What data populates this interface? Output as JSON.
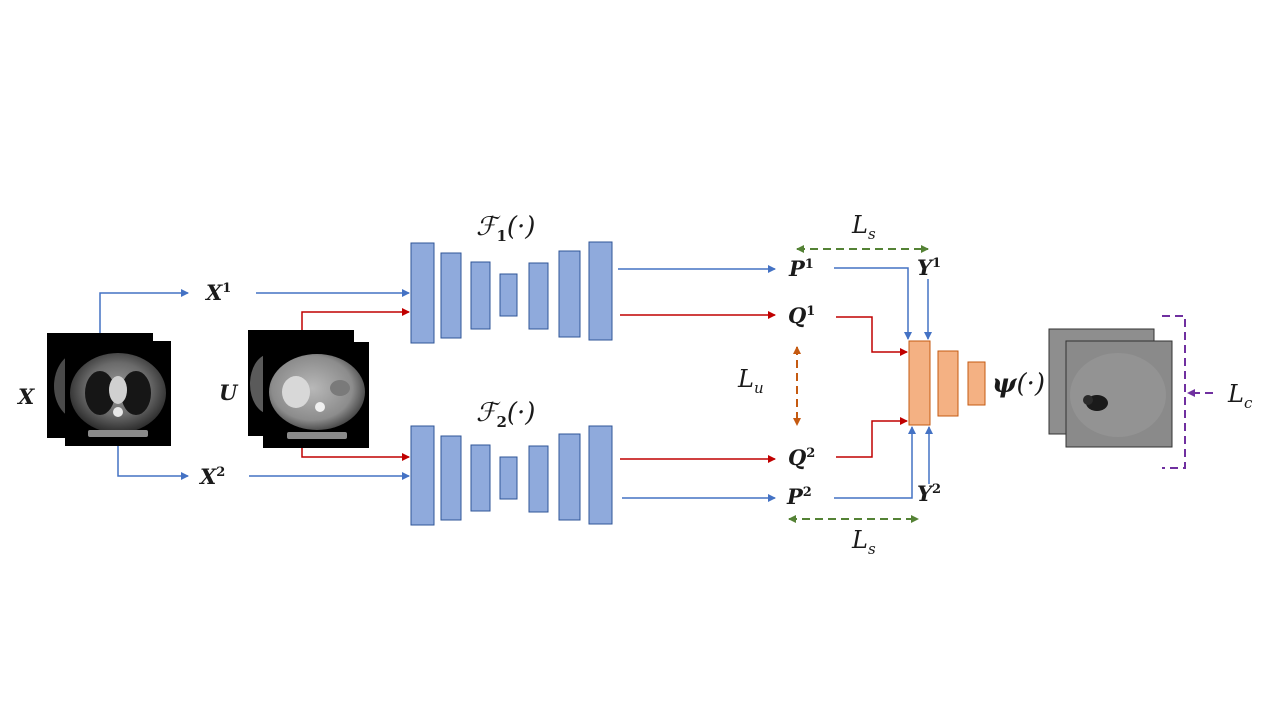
{
  "labels": {
    "x": "X",
    "x1": "X",
    "x1_sup": "1",
    "x2": "X",
    "x2_sup": "2",
    "u": "U",
    "f1": "ℱ",
    "f1_sub": "1",
    "f1_arg": "(·)",
    "f2": "ℱ",
    "f2_sub": "2",
    "f2_arg": "(·)",
    "p1": "P",
    "p1_sup": "1",
    "q1": "Q",
    "q1_sup": "1",
    "q2": "Q",
    "q2_sup": "2",
    "p2": "P",
    "p2_sup": "2",
    "y1": "Y",
    "y1_sup": "1",
    "y2": "Y",
    "y2_sup": "2",
    "ls_top": "L",
    "ls_top_sub": "s",
    "ls_bottom": "L",
    "ls_bottom_sub": "s",
    "lu": "L",
    "lu_sub": "u",
    "lc": "L",
    "lc_sub": "c",
    "psi": "ψ",
    "psi_arg": "(·)"
  },
  "colors": {
    "encoder_fill": "#8faadc",
    "encoder_stroke": "#2f5597",
    "head_fill": "#f4b183",
    "head_stroke": "#c55a11",
    "labeled_arrow": "#4472c4",
    "unlabeled_arrow": "#c00000",
    "loss_s": "#548235",
    "loss_u": "#c55a11",
    "loss_c": "#7030a0"
  }
}
